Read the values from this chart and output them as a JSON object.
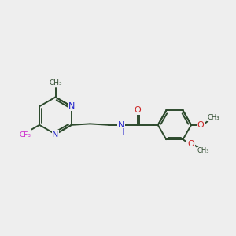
{
  "bg_color": "#eeeeee",
  "bond_color": "#2d4a2d",
  "N_color": "#2222cc",
  "O_color": "#cc2222",
  "F_color": "#cc22cc",
  "line_width": 1.4,
  "figsize": [
    3.0,
    3.0
  ],
  "dpi": 100,
  "xlim": [
    0,
    10
  ],
  "ylim": [
    0,
    10
  ]
}
